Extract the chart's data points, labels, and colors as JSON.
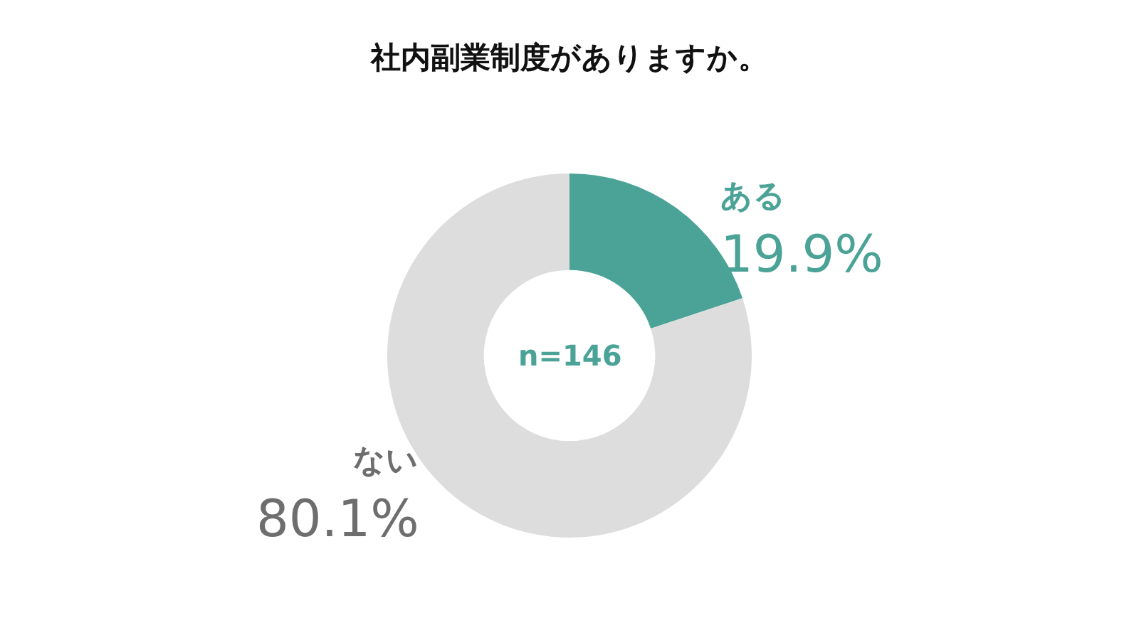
{
  "chart_data": {
    "type": "donut",
    "title": "社内副業制度がありますか。",
    "categories": [
      "ある",
      "ない"
    ],
    "values": [
      19.9,
      80.1
    ],
    "colors": [
      "#4aa396",
      "#dddddd"
    ],
    "value_labels": [
      "19.9%",
      "80.1%"
    ],
    "legend": false,
    "annotations": [
      "n=146"
    ]
  }
}
